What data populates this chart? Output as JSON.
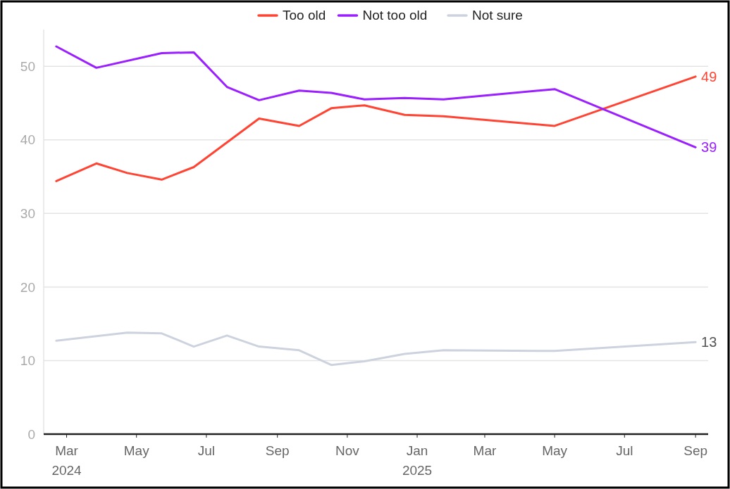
{
  "chart_data": {
    "type": "line",
    "legend": "top",
    "grid": "y",
    "ylim": [
      0,
      55
    ],
    "yticks": [
      0,
      10,
      20,
      30,
      40,
      50
    ],
    "xlim": [
      "2024-02-10",
      "2025-09-12"
    ],
    "xticks": [
      {
        "value": "2024-03-01",
        "label": "Mar\n2024"
      },
      {
        "value": "2024-05-01",
        "label": "May"
      },
      {
        "value": "2024-07-01",
        "label": "Jul"
      },
      {
        "value": "2024-09-01",
        "label": "Sep"
      },
      {
        "value": "2024-11-01",
        "label": "Nov"
      },
      {
        "value": "2025-01-01",
        "label": "Jan\n2025"
      },
      {
        "value": "2025-03-01",
        "label": "Mar"
      },
      {
        "value": "2025-05-01",
        "label": "May"
      },
      {
        "value": "2025-07-01",
        "label": "Jul"
      },
      {
        "value": "2025-09-01",
        "label": "Sep"
      }
    ],
    "series": [
      {
        "name": "Too old",
        "color": "#ff4433",
        "x": [
          "2024-02-21",
          "2024-03-27",
          "2024-04-23",
          "2024-05-23",
          "2024-06-20",
          "2024-08-16",
          "2024-09-20",
          "2024-10-18",
          "2024-11-16",
          "2024-12-21",
          "2025-01-24",
          "2025-05-01",
          "2025-09-01"
        ],
        "values": [
          34.4,
          36.8,
          35.5,
          34.6,
          36.3,
          42.9,
          41.9,
          44.3,
          44.7,
          43.4,
          43.2,
          41.9,
          48.6
        ],
        "value_labels": [
          null,
          null,
          null,
          null,
          null,
          null,
          null,
          null,
          null,
          null,
          null,
          null,
          "49"
        ]
      },
      {
        "name": "Not too old",
        "color": "#9b1fff",
        "x": [
          "2024-02-21",
          "2024-03-27",
          "2024-05-23",
          "2024-06-20",
          "2024-07-19",
          "2024-08-16",
          "2024-09-20",
          "2024-10-18",
          "2024-11-16",
          "2024-12-21",
          "2025-01-24",
          "2025-05-01",
          "2025-09-01"
        ],
        "values": [
          52.7,
          49.8,
          51.8,
          51.9,
          47.2,
          45.4,
          46.7,
          46.4,
          45.5,
          45.7,
          45.5,
          46.9,
          39.0
        ],
        "value_labels": [
          null,
          null,
          null,
          null,
          null,
          null,
          null,
          null,
          null,
          null,
          null,
          null,
          "39"
        ]
      },
      {
        "name": "Not sure",
        "color": "#cdd3de",
        "x": [
          "2024-02-21",
          "2024-04-23",
          "2024-05-23",
          "2024-06-20",
          "2024-07-19",
          "2024-08-16",
          "2024-09-20",
          "2024-10-18",
          "2024-11-16",
          "2024-12-21",
          "2025-01-24",
          "2025-05-01",
          "2025-09-01"
        ],
        "values": [
          12.7,
          13.8,
          13.7,
          11.9,
          13.4,
          11.9,
          11.4,
          9.4,
          9.9,
          10.9,
          11.4,
          11.3,
          12.5
        ],
        "value_labels": [
          null,
          null,
          null,
          null,
          null,
          null,
          null,
          null,
          null,
          null,
          null,
          null,
          "13"
        ]
      }
    ]
  }
}
